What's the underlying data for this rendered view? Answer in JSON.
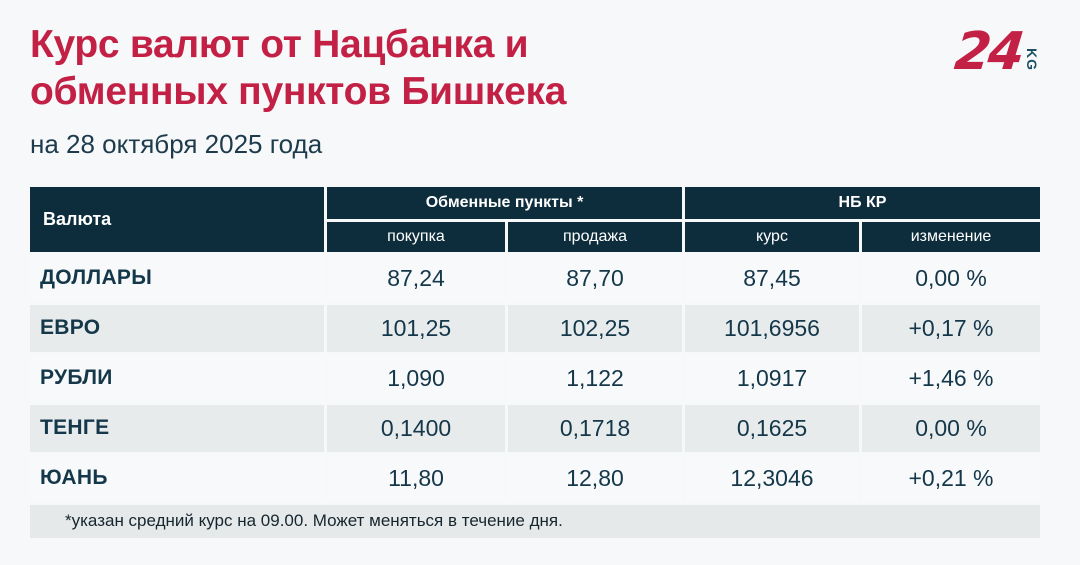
{
  "header": {
    "title_lines": [
      "Курс валют от Нацбанка и",
      "обменных пунктов Бишкека"
    ],
    "subtitle": "на 28 октября 2025 года"
  },
  "logo": {
    "number": "24",
    "suffix": "KG"
  },
  "colors": {
    "accent_red": "#c32045",
    "header_bg": "#0e2d3c",
    "text_dark": "#14374a",
    "row_light": "#f7f9fa",
    "row_gray": "#e8ebec",
    "footnote_bg": "#e6e9ea",
    "page_bg": "#f6f8f9"
  },
  "table": {
    "columns": {
      "currency": "Валюта",
      "group_exchange": "Обменные пункты *",
      "group_nbkr": "НБ КР",
      "buy": "покупка",
      "sell": "продажа",
      "rate": "курс",
      "change": "изменение"
    },
    "rows": [
      {
        "name": "ДОЛЛАРЫ",
        "buy": "87,24",
        "sell": "87,70",
        "rate": "87,45",
        "change": "0,00 %"
      },
      {
        "name": "ЕВРО",
        "buy": "101,25",
        "sell": "102,25",
        "rate": "101,6956",
        "change": "+0,17 %"
      },
      {
        "name": "РУБЛИ",
        "buy": "1,090",
        "sell": "1,122",
        "rate": "1,0917",
        "change": "+1,46 %"
      },
      {
        "name": "ТЕНГЕ",
        "buy": "0,1400",
        "sell": "0,1718",
        "rate": "0,1625",
        "change": "0,00 %"
      },
      {
        "name": "ЮАНЬ",
        "buy": "11,80",
        "sell": "12,80",
        "rate": "12,3046",
        "change": "+0,21 %"
      }
    ],
    "footnote": "*указан средний курс на 09.00. Может меняться в течение дня."
  },
  "chart_data": {
    "type": "table",
    "title": "Курс валют от Нацбанка и обменных пунктов Бишкека",
    "subtitle": "на 28 октября 2025 года",
    "column_groups": [
      "Валюта",
      "Обменные пункты *",
      "НБ КР"
    ],
    "columns": [
      "Валюта",
      "покупка",
      "продажа",
      "курс",
      "изменение"
    ],
    "rows": [
      [
        "ДОЛЛАРЫ",
        87.24,
        87.7,
        87.45,
        0.0
      ],
      [
        "ЕВРО",
        101.25,
        102.25,
        101.6956,
        0.17
      ],
      [
        "РУБЛИ",
        1.09,
        1.122,
        1.0917,
        1.46
      ],
      [
        "ТЕНГЕ",
        0.14,
        0.1718,
        0.1625,
        0.0
      ],
      [
        "ЮАНЬ",
        11.8,
        12.8,
        12.3046,
        0.21
      ]
    ],
    "change_unit": "%",
    "footnote": "*указан средний курс на 09.00. Может меняться в течение дня."
  }
}
